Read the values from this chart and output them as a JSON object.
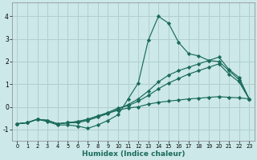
{
  "xlabel": "Humidex (Indice chaleur)",
  "bg_color": "#cce8e8",
  "grid_color": "#b0d0cc",
  "line_color": "#1a6b5a",
  "xlim": [
    -0.5,
    23.5
  ],
  "ylim": [
    -1.5,
    4.6
  ],
  "xticks": [
    0,
    1,
    2,
    3,
    4,
    5,
    6,
    7,
    8,
    9,
    10,
    11,
    12,
    13,
    14,
    15,
    16,
    17,
    18,
    19,
    20,
    21,
    22,
    23
  ],
  "yticks": [
    -1,
    0,
    1,
    2,
    3,
    4
  ],
  "line1_x": [
    0,
    1,
    2,
    3,
    4,
    5,
    6,
    7,
    8,
    9,
    10,
    11,
    12,
    13,
    14,
    15,
    16,
    17,
    18,
    19,
    20,
    21,
    22,
    23
  ],
  "line1_y": [
    -0.75,
    -0.7,
    -0.55,
    -0.65,
    -0.8,
    -0.8,
    -0.85,
    -0.95,
    -0.8,
    -0.6,
    -0.35,
    0.35,
    1.05,
    2.95,
    4.0,
    3.7,
    2.85,
    2.35,
    2.25,
    2.05,
    2.0,
    1.6,
    1.2,
    0.35
  ],
  "line2_x": [
    0,
    1,
    2,
    3,
    4,
    5,
    6,
    7,
    8,
    9,
    10,
    11,
    12,
    13,
    14,
    15,
    16,
    17,
    18,
    19,
    20,
    21,
    22,
    23
  ],
  "line2_y": [
    -0.75,
    -0.7,
    -0.55,
    -0.6,
    -0.75,
    -0.7,
    -0.7,
    -0.6,
    -0.45,
    -0.3,
    -0.1,
    0.1,
    0.35,
    0.7,
    1.1,
    1.4,
    1.6,
    1.75,
    1.9,
    2.05,
    2.2,
    1.65,
    1.3,
    0.35
  ],
  "line3_x": [
    0,
    1,
    2,
    3,
    4,
    5,
    6,
    7,
    8,
    9,
    10,
    11,
    12,
    13,
    14,
    15,
    16,
    17,
    18,
    19,
    20,
    21,
    22,
    23
  ],
  "line3_y": [
    -0.75,
    -0.7,
    -0.55,
    -0.6,
    -0.75,
    -0.7,
    -0.65,
    -0.55,
    -0.4,
    -0.25,
    -0.05,
    0.05,
    0.25,
    0.5,
    0.8,
    1.05,
    1.25,
    1.45,
    1.6,
    1.75,
    1.9,
    1.45,
    1.1,
    0.35
  ],
  "line4_x": [
    0,
    1,
    2,
    3,
    4,
    5,
    6,
    7,
    8,
    9,
    10,
    11,
    12,
    13,
    14,
    15,
    16,
    17,
    18,
    19,
    20,
    21,
    22,
    23
  ],
  "line4_y": [
    -0.75,
    -0.7,
    -0.55,
    -0.6,
    -0.75,
    -0.7,
    -0.65,
    -0.55,
    -0.4,
    -0.28,
    -0.15,
    -0.05,
    0.0,
    0.12,
    0.2,
    0.25,
    0.3,
    0.35,
    0.38,
    0.42,
    0.45,
    0.42,
    0.4,
    0.35
  ]
}
